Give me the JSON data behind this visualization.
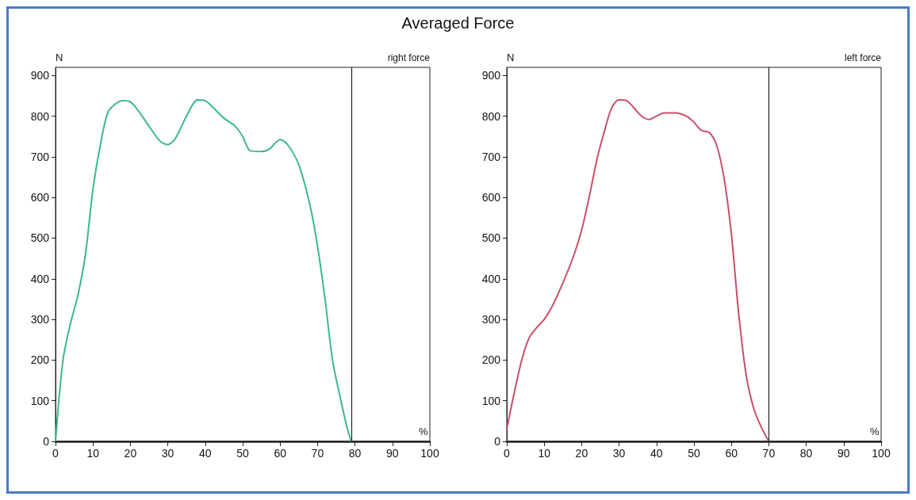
{
  "chart_data": [
    {
      "type": "line",
      "title": "Averaged Force",
      "xlabel": "%",
      "ylabel": "N",
      "annotations": [
        "right force"
      ],
      "xlim": [
        0,
        100
      ],
      "xticks": [
        0,
        10,
        20,
        30,
        40,
        50,
        60,
        70,
        80,
        90,
        100
      ],
      "ylim": [
        0,
        920
      ],
      "yticks": [
        0,
        100,
        200,
        300,
        400,
        500,
        600,
        700,
        800,
        900
      ],
      "marker": "none",
      "ref_lines": [
        {
          "axis": "x",
          "value": 79,
          "label": null,
          "color": "#222222"
        }
      ],
      "series": [
        {
          "color": "#3cb88f",
          "x": [
            0,
            2,
            4,
            6,
            8,
            10,
            12,
            14,
            16,
            18,
            20,
            22,
            25,
            28,
            30,
            32,
            35,
            38,
            40,
            42,
            45,
            48,
            50,
            52,
            55,
            57,
            60,
            62,
            65,
            68,
            70,
            72,
            74,
            76,
            78,
            79
          ],
          "values": [
            0,
            200,
            290,
            360,
            460,
            620,
            730,
            810,
            830,
            838,
            835,
            815,
            775,
            738,
            730,
            745,
            800,
            840,
            838,
            822,
            795,
            775,
            750,
            715,
            713,
            718,
            742,
            730,
            680,
            580,
            480,
            350,
            200,
            110,
            30,
            0
          ]
        }
      ]
    },
    {
      "type": "line",
      "xlabel": "%",
      "ylabel": "N",
      "annotations": [
        "left force"
      ],
      "xlim": [
        0,
        100
      ],
      "xticks": [
        0,
        10,
        20,
        30,
        40,
        50,
        60,
        70,
        80,
        90,
        100
      ],
      "ylim": [
        0,
        920
      ],
      "yticks": [
        0,
        100,
        200,
        300,
        400,
        500,
        600,
        700,
        800,
        900
      ],
      "marker": "none",
      "ref_lines": [
        {
          "axis": "x",
          "value": 70,
          "label": null,
          "color": "#222222"
        }
      ],
      "series": [
        {
          "color": "#c94f6a",
          "x": [
            0,
            2,
            4,
            6,
            8,
            10,
            12,
            15,
            18,
            20,
            22,
            24,
            26,
            28,
            30,
            32,
            34,
            36,
            38,
            40,
            42,
            45,
            48,
            50,
            52,
            54,
            56,
            58,
            60,
            62,
            64,
            66,
            68,
            70
          ],
          "values": [
            30,
            120,
            200,
            255,
            280,
            300,
            330,
            390,
            460,
            520,
            600,
            690,
            760,
            820,
            840,
            838,
            820,
            800,
            792,
            800,
            808,
            808,
            800,
            785,
            765,
            760,
            730,
            650,
            510,
            310,
            160,
            80,
            35,
            0
          ]
        }
      ]
    }
  ]
}
